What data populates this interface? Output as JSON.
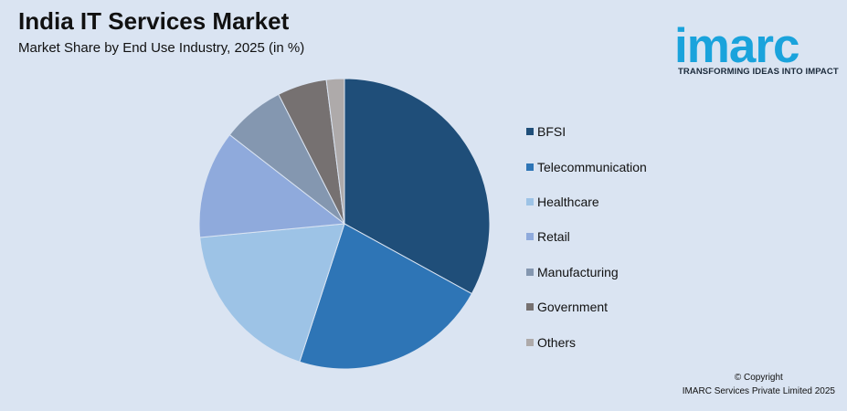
{
  "header": {
    "title": "India IT Services Market",
    "subtitle": "Market Share by End Use Industry, 2025 (in %)"
  },
  "logo": {
    "word": "imarc",
    "tagline": "TRANSFORMING IDEAS INTO IMPACT",
    "color": "#1aa3dc"
  },
  "footer": {
    "copyright": "© Copyright",
    "company": "IMARC Services Private Limited 2025"
  },
  "chart_data": {
    "type": "pie",
    "title": "India IT Services Market",
    "subtitle": "Market Share by End Use Industry, 2025 (in %)",
    "legend_position": "right",
    "categories": [
      "BFSI",
      "Telecommunication",
      "Healthcare",
      "Retail",
      "Manufacturing",
      "Government",
      "Others"
    ],
    "values": [
      33,
      22,
      18.5,
      12,
      7,
      5.5,
      2
    ],
    "colors": [
      "#1f4e79",
      "#2e75b6",
      "#9dc3e6",
      "#8faadc",
      "#8497b0",
      "#767171",
      "#aeaaaa"
    ],
    "start_angle_deg": 0,
    "direction": "clockwise"
  }
}
